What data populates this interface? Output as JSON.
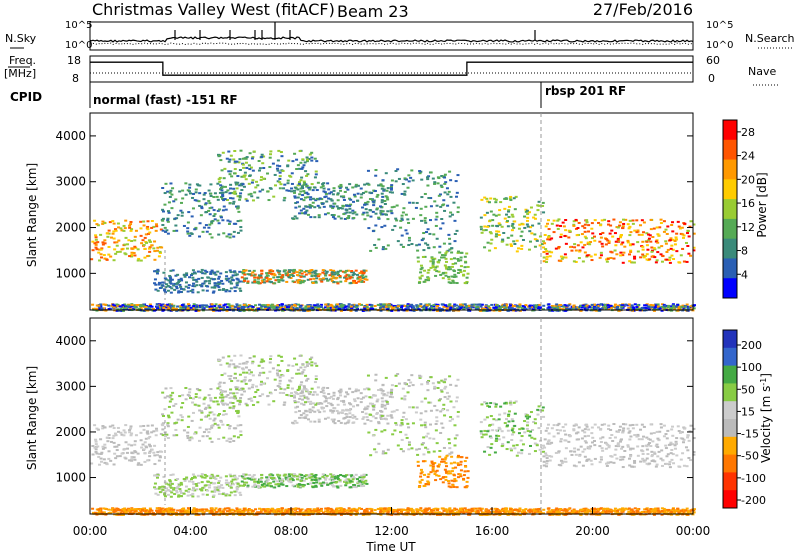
{
  "header": {
    "station": "Christmas Valley West (fitACF)",
    "beam": "Beam 23",
    "date": "27/Feb/2016"
  },
  "side_labels": {
    "nsky": "N.Sky",
    "freq_line1": "Freq.",
    "freq_line2": "[MHz]",
    "cpid": "CPID",
    "nsearch": "N.Search",
    "nave": "Nave"
  },
  "colors": {
    "power_scale": [
      "#0000ff",
      "#2a5fb4",
      "#3a8a7a",
      "#55aa55",
      "#99cc33",
      "#ffcc00",
      "#ff9900",
      "#ff5500",
      "#ff0000"
    ],
    "velocity_scale": [
      "#2233bb",
      "#3366cc",
      "#44aa44",
      "#88cc44",
      "#cccccc",
      "#bbbbbb",
      "#ffaa00",
      "#ff7700",
      "#ff3300",
      "#ff0000"
    ],
    "ground_scatter": "#c8c8c8"
  },
  "chart_data": [
    {
      "type": "line",
      "panel": "noise",
      "ylabel_left": "N.Sky",
      "ylabel_right": "N.Search",
      "yticks_left": [
        "10^5",
        "10^0"
      ],
      "yticks_right": [
        "10^5",
        "10^0"
      ]
    },
    {
      "type": "line",
      "panel": "frequency",
      "ylabel_left": "Freq. [MHz]",
      "ylabel_right": "Nave",
      "yticks_left": [
        "18",
        "8"
      ],
      "yticks_right": [
        "60",
        "0"
      ],
      "freq_steps": [
        {
          "x_hour": 0,
          "value": 16
        },
        {
          "x_hour": 2.9,
          "value": 11
        },
        {
          "x_hour": 15.0,
          "value": 16
        },
        {
          "x_hour": 24,
          "value": 16
        }
      ]
    },
    {
      "type": "table",
      "panel": "cpid",
      "label": "CPID",
      "segments": [
        {
          "start_hour": 0,
          "text": "normal (fast) -151 RF"
        },
        {
          "start_hour": 18.0,
          "text": "rbsp 201 RF"
        }
      ]
    },
    {
      "type": "heatmap",
      "panel": "power",
      "xlabel": "Time UT",
      "ylabel": "Slant Range [km]",
      "xlim": [
        "00:00",
        "00:00"
      ],
      "ylim": [
        200,
        4500
      ],
      "yticks": [
        1000,
        2000,
        3000,
        4000
      ],
      "colorbar_label": "Power [dB]",
      "colorbar_ticks": [
        4,
        8,
        12,
        16,
        20,
        24,
        28
      ],
      "colorbar_range": [
        0,
        30
      ]
    },
    {
      "type": "heatmap",
      "panel": "velocity",
      "xlabel": "Time UT",
      "ylabel": "Slant Range [km]",
      "ylim": [
        200,
        4500
      ],
      "yticks": [
        1000,
        2000,
        3000,
        4000
      ],
      "xticks": [
        "00:00",
        "04:00",
        "08:00",
        "12:00",
        "16:00",
        "20:00",
        "00:00"
      ],
      "colorbar_label": "Velocity [m s",
      "colorbar_unit_sup": "-1",
      "colorbar_label_end": "]",
      "colorbar_ticks": [
        200,
        100,
        50,
        15,
        -15,
        -50,
        -100,
        -200
      ]
    }
  ]
}
